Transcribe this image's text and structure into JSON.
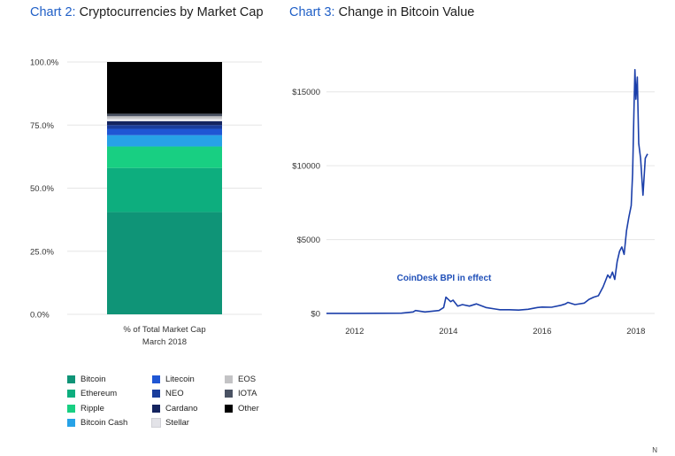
{
  "chart2": {
    "title_num": "Chart 2:",
    "title_text": " Cryptocurrencies by Market Cap",
    "xlabel_line1": "% of Total Market Cap",
    "xlabel_line2": "March 2018"
  },
  "chart3": {
    "title_num": "Chart 3:",
    "title_text": " Change in Bitcoin Value",
    "annotation": "CoinDesk BPI in effect"
  },
  "corner_mark": "N",
  "chart_data": [
    {
      "type": "bar",
      "stacked": true,
      "title": "Cryptocurrencies by Market Cap",
      "categories": [
        "% of Total Market Cap March 2018"
      ],
      "ylim": [
        0,
        100
      ],
      "yticks": [
        "0.0%",
        "25.0%",
        "50.0%",
        "75.0%",
        "100.0%"
      ],
      "grid": true,
      "legend_position": "bottom",
      "series": [
        {
          "name": "Bitcoin",
          "values": [
            40.5
          ],
          "color": "#0f9477"
        },
        {
          "name": "Ethereum",
          "values": [
            17.5
          ],
          "color": "#0dae7e"
        },
        {
          "name": "Ripple",
          "values": [
            8.5
          ],
          "color": "#18cf82"
        },
        {
          "name": "Bitcoin Cash",
          "values": [
            4.5
          ],
          "color": "#27a2e7"
        },
        {
          "name": "Litecoin",
          "values": [
            2.5
          ],
          "color": "#1f56d4"
        },
        {
          "name": "NEO",
          "values": [
            1.5
          ],
          "color": "#1a3d9c"
        },
        {
          "name": "Cardano",
          "values": [
            1.5
          ],
          "color": "#14245f"
        },
        {
          "name": "Stellar",
          "values": [
            1.0
          ],
          "color": "#e3e3e8"
        },
        {
          "name": "EOS",
          "values": [
            1.0
          ],
          "color": "#c3c3c5"
        },
        {
          "name": "IOTA",
          "values": [
            1.0
          ],
          "color": "#4a5263"
        },
        {
          "name": "Other",
          "values": [
            20.5
          ],
          "color": "#000000"
        }
      ]
    },
    {
      "type": "line",
      "title": "Change in Bitcoin Value",
      "xlim": [
        2011.4,
        2018.4
      ],
      "ylim": [
        0,
        17500
      ],
      "xticks": [
        "2012",
        "2014",
        "2016",
        "2018"
      ],
      "yticks": [
        "$0",
        "$5000",
        "$10000",
        "$15000"
      ],
      "grid": true,
      "series": [
        {
          "name": "Bitcoin",
          "color": "#1b3faa",
          "x": [
            2011.4,
            2012.0,
            2012.5,
            2013.0,
            2013.25,
            2013.3,
            2013.5,
            2013.8,
            2013.9,
            2013.95,
            2014.05,
            2014.1,
            2014.2,
            2014.3,
            2014.45,
            2014.6,
            2014.8,
            2015.0,
            2015.1,
            2015.3,
            2015.5,
            2015.7,
            2015.9,
            2016.0,
            2016.2,
            2016.4,
            2016.5,
            2016.55,
            2016.7,
            2016.9,
            2017.0,
            2017.1,
            2017.2,
            2017.3,
            2017.4,
            2017.45,
            2017.5,
            2017.55,
            2017.6,
            2017.65,
            2017.7,
            2017.75,
            2017.8,
            2017.85,
            2017.9,
            2017.93,
            2017.96,
            2017.98,
            2018.0,
            2018.03,
            2018.06,
            2018.1,
            2018.15,
            2018.2,
            2018.25
          ],
          "values": [
            5,
            5,
            10,
            15,
            100,
            200,
            100,
            200,
            400,
            1100,
            800,
            900,
            500,
            600,
            500,
            650,
            400,
            300,
            250,
            250,
            230,
            280,
            400,
            430,
            420,
            550,
            650,
            750,
            600,
            700,
            950,
            1100,
            1200,
            1800,
            2600,
            2400,
            2800,
            2300,
            3500,
            4200,
            4500,
            4000,
            5600,
            6500,
            7300,
            9500,
            14000,
            16500,
            14500,
            16000,
            11500,
            10500,
            8000,
            10500,
            10800
          ]
        }
      ]
    }
  ]
}
